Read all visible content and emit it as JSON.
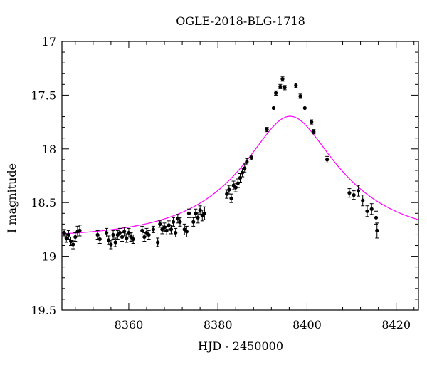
{
  "chart_data": {
    "type": "scatter",
    "title": "OGLE-2018-BLG-1718",
    "xlabel": "HJD - 2450000",
    "ylabel": "I magnitude",
    "xlim": [
      8345,
      8425
    ],
    "ylim": [
      19.5,
      17.0
    ],
    "y_inverted": true,
    "grid": false,
    "x_ticks": [
      8360,
      8380,
      8400,
      8420
    ],
    "y_ticks": [
      17,
      17.5,
      18,
      18.5,
      19,
      19.5
    ],
    "model_color": "#ff00ff",
    "point_color": "#000000",
    "model": {
      "t0": 8396.2,
      "u0": 0.37,
      "tE": 22,
      "I_base": 18.83
    },
    "series": [
      {
        "x": [
          8345.5,
          8346.0,
          8346.5,
          8347.0,
          8347.5,
          8348.0,
          8348.5,
          8349.0,
          8353.0,
          8353.5,
          8355.0,
          8355.5,
          8356.0,
          8356.5,
          8357.0,
          8357.5,
          8358.0,
          8358.5,
          8359.0,
          8359.5,
          8360.0,
          8360.5,
          8361.0,
          8363.0,
          8363.5,
          8364.0,
          8364.5,
          8365.5,
          8366.5,
          8367.0,
          8367.5,
          8368.0,
          8368.5,
          8369.0,
          8369.5,
          8370.0,
          8370.5,
          8371.0,
          8371.5,
          8372.5,
          8373.0,
          8373.5,
          8374.5,
          8375.0,
          8375.5,
          8376.0,
          8376.5,
          8377.0,
          8382.0,
          8382.5,
          8383.0,
          8383.5,
          8384.0,
          8384.5,
          8385.0,
          8385.5,
          8386.0,
          8386.5,
          8387.5,
          8391.0,
          8392.5,
          8393.0,
          8394.0,
          8394.5,
          8395.0,
          8397.5,
          8398.5,
          8399.5,
          8401.0,
          8401.5,
          8404.5,
          8409.5,
          8410.5,
          8411.5,
          8412.5,
          8413.5,
          8414.5,
          8415.5,
          8415.7
        ],
        "y": [
          18.78,
          18.83,
          18.8,
          18.86,
          18.89,
          18.82,
          18.77,
          18.76,
          18.8,
          18.84,
          18.78,
          18.85,
          18.89,
          18.8,
          18.87,
          18.8,
          18.78,
          18.82,
          18.77,
          18.83,
          18.78,
          18.82,
          18.84,
          18.76,
          18.82,
          18.78,
          18.8,
          18.75,
          18.87,
          18.7,
          18.75,
          18.73,
          18.76,
          18.71,
          18.75,
          18.68,
          18.78,
          18.65,
          18.68,
          18.75,
          18.77,
          18.6,
          18.68,
          18.6,
          18.64,
          18.57,
          18.62,
          18.6,
          18.42,
          18.38,
          18.46,
          18.34,
          18.36,
          18.32,
          18.27,
          18.22,
          18.18,
          18.12,
          18.08,
          17.82,
          17.62,
          17.48,
          17.42,
          17.35,
          17.43,
          17.41,
          17.51,
          17.62,
          17.75,
          17.84,
          18.1,
          18.41,
          18.43,
          18.39,
          18.48,
          18.58,
          18.56,
          18.64,
          18.76
        ],
        "err": [
          0.03,
          0.04,
          0.04,
          0.04,
          0.04,
          0.04,
          0.05,
          0.05,
          0.04,
          0.04,
          0.04,
          0.04,
          0.04,
          0.04,
          0.04,
          0.04,
          0.04,
          0.04,
          0.04,
          0.04,
          0.04,
          0.04,
          0.04,
          0.04,
          0.04,
          0.04,
          0.04,
          0.03,
          0.04,
          0.03,
          0.04,
          0.04,
          0.04,
          0.04,
          0.04,
          0.04,
          0.04,
          0.04,
          0.04,
          0.05,
          0.05,
          0.04,
          0.04,
          0.04,
          0.05,
          0.04,
          0.05,
          0.06,
          0.04,
          0.04,
          0.04,
          0.04,
          0.04,
          0.04,
          0.04,
          0.04,
          0.04,
          0.03,
          0.02,
          0.02,
          0.02,
          0.02,
          0.02,
          0.02,
          0.02,
          0.02,
          0.02,
          0.02,
          0.02,
          0.02,
          0.03,
          0.04,
          0.04,
          0.05,
          0.05,
          0.05,
          0.05,
          0.06,
          0.07
        ]
      }
    ]
  }
}
